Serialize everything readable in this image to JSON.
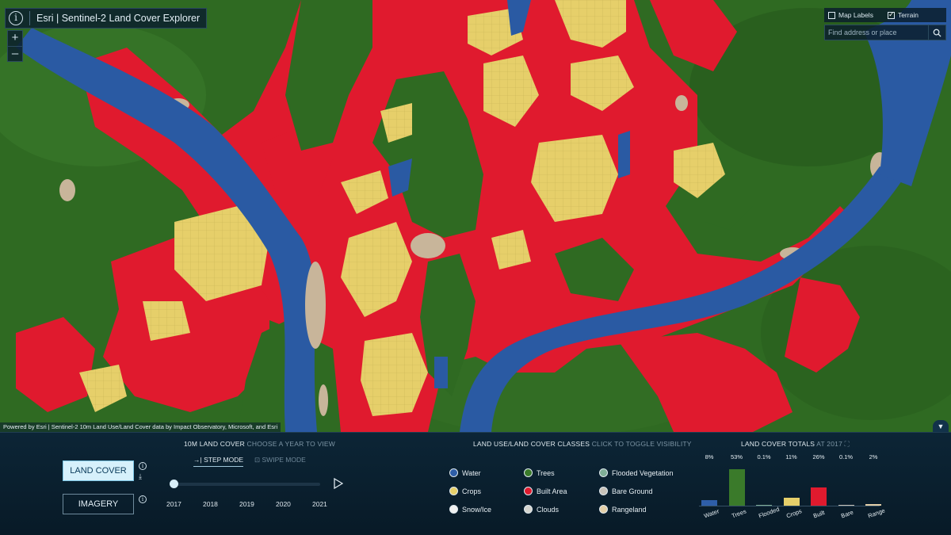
{
  "app": {
    "title": "Esri | Sentinel-2 Land Cover Explorer"
  },
  "zoom": {
    "in": "+",
    "out": "–"
  },
  "layer_toggles": [
    {
      "label": "Map Labels",
      "checked": false
    },
    {
      "label": "Terrain",
      "checked": true
    }
  ],
  "search": {
    "placeholder": "Find address or place"
  },
  "attribution": "Powered by Esri | Sentinel-2 10m Land Use/Land Cover data by Impact Observatory, Microsoft, and Esri",
  "panel": {
    "buttons": {
      "land_cover": "LAND COVER",
      "imagery": "IMAGERY"
    },
    "year_section": {
      "title": "10M LAND COVER",
      "hint": "CHOOSE A YEAR TO VIEW"
    },
    "modes": {
      "step": "STEP MODE",
      "swipe": "SWIPE MODE"
    },
    "years": [
      "2017",
      "2018",
      "2019",
      "2020",
      "2021"
    ],
    "selected_year_index": 0,
    "classes_section": {
      "title": "LAND USE/LAND COVER CLASSES",
      "hint": "CLICK TO TOGGLE VISIBILITY"
    },
    "classes": [
      {
        "name": "Water",
        "color": "#2e5ea8"
      },
      {
        "name": "Trees",
        "color": "#3a7a2a"
      },
      {
        "name": "Flooded Vegetation",
        "color": "#7fae96"
      },
      {
        "name": "Crops",
        "color": "#e6cf6a"
      },
      {
        "name": "Built Area",
        "color": "#e01a2e"
      },
      {
        "name": "Bare Ground",
        "color": "#c8c2b8"
      },
      {
        "name": "Snow/Ice",
        "color": "#f0f0f0"
      },
      {
        "name": "Clouds",
        "color": "#d5d5cf"
      },
      {
        "name": "Rangeland",
        "color": "#e3cfa8"
      }
    ],
    "totals_section": {
      "title": "LAND COVER TOTALS",
      "hint": "AT 2017"
    }
  },
  "chart_data": {
    "type": "bar",
    "categories": [
      "Water",
      "Trees",
      "Flooded",
      "Crops",
      "Built",
      "Bare",
      "Range"
    ],
    "value_labels": [
      "8%",
      "53%",
      "0.1%",
      "11%",
      "26%",
      "0.1%",
      "2%"
    ],
    "values": [
      8,
      53,
      0.1,
      11,
      26,
      0.1,
      2
    ],
    "colors": [
      "#2e5ea8",
      "#3a7a2a",
      "#7fae96",
      "#e6cf6a",
      "#e01a2e",
      "#c8c2b8",
      "#e3cfa8"
    ]
  }
}
